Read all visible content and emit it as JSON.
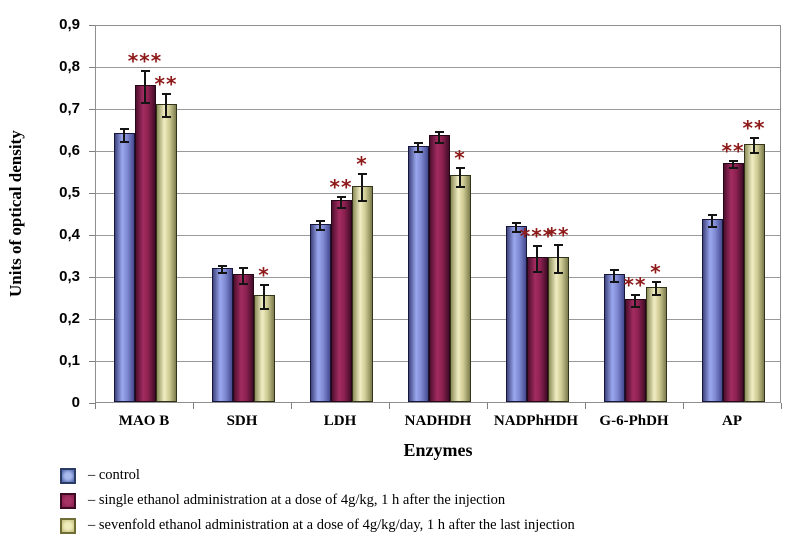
{
  "chart": {
    "y_axis_title": "Units of optical density",
    "x_axis_title": "Enzymes",
    "y_ticks": [
      "0,9",
      "0,8",
      "0,7",
      "0,6",
      "0,5",
      "0,4",
      "0,3",
      "0,2",
      "0,1",
      "0"
    ],
    "significance_color": "#8e1a1a",
    "grid_color": "#9a9a9a",
    "axis_color": "#7f7f7f"
  },
  "chart_data": {
    "type": "bar",
    "title": "",
    "xlabel": "Enzymes",
    "ylabel": "Units of optical density",
    "ylim": [
      0,
      0.9
    ],
    "y_tick_step": 0.1,
    "grid": true,
    "legend_position": "bottom",
    "error_bars": true,
    "categories": [
      "MAO B",
      "SDH",
      "LDH",
      "NADHDH",
      "NADPhHDH",
      "G-6-PhDH",
      "AP"
    ],
    "series": [
      {
        "name": "control",
        "legend_label": "– control",
        "values": [
          0.64,
          0.32,
          0.425,
          0.61,
          0.42,
          0.305,
          0.435
        ],
        "errors": [
          0.018,
          0.01,
          0.014,
          0.013,
          0.014,
          0.016,
          0.017
        ],
        "significance": [
          "",
          "",
          "",
          "",
          "",
          "",
          ""
        ],
        "gradient": [
          "#40447e",
          "#9aa8ee",
          "#7e89d2",
          "#474b90"
        ],
        "border": "#16163a",
        "swatch": {
          "border": "#2c3a66",
          "outer": "#5d72b4",
          "inner": "#a9bbee"
        }
      },
      {
        "name": "single ethanol administration at a dose of 4g/kg, 1 h after the injection",
        "legend_label": "– single ethanol administration at a dose of 4g/kg, 1 h after the injection",
        "values": [
          0.755,
          0.305,
          0.48,
          0.635,
          0.345,
          0.245,
          0.57
        ],
        "errors": [
          0.04,
          0.022,
          0.016,
          0.015,
          0.033,
          0.017,
          0.01
        ],
        "significance": [
          "***",
          "",
          "**",
          "",
          "***",
          "**",
          "**"
        ],
        "gradient": [
          "#4e0f2f",
          "#a32c60",
          "#8c2150",
          "#420d29"
        ],
        "border": "#260617",
        "swatch": {
          "border": "#3c0c24",
          "outer": "#8e2150",
          "inner": "#a53464"
        }
      },
      {
        "name": "sevenfold ethanol administration at a dose of 4g/kg/day, 1 h after the last injection",
        "legend_label": "– sevenfold ethanol administration at a dose of 4g/kg/day, 1 h after the last injection",
        "values": [
          0.71,
          0.255,
          0.515,
          0.54,
          0.345,
          0.275,
          0.615
        ],
        "errors": [
          0.03,
          0.03,
          0.035,
          0.025,
          0.035,
          0.017,
          0.02
        ],
        "significance": [
          "**",
          "*",
          "*",
          "*",
          "**",
          "*",
          "**"
        ],
        "gradient": [
          "#8d8d5a",
          "#f0edc2",
          "#cfcb94",
          "#7c7c4e"
        ],
        "border": "#33331a",
        "swatch": {
          "border": "#6e6e35",
          "outer": "#c9c685",
          "inner": "#f0edbd"
        }
      }
    ]
  }
}
